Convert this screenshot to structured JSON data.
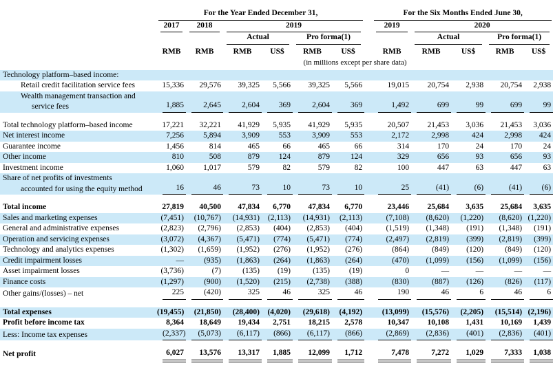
{
  "table": {
    "header": {
      "year_group_label": "For the Year Ended December 31,",
      "six_month_group_label": "For the Six Months Ended June 30,",
      "years": [
        "2017",
        "2018",
        "2019",
        "2019",
        "2020"
      ],
      "actual_label": "Actual",
      "pro_forma_label": "Pro forma(1)",
      "currencies": [
        "RMB",
        "RMB",
        "RMB",
        "US$",
        "RMB",
        "US$",
        "RMB",
        "RMB",
        "US$",
        "RMB",
        "US$"
      ],
      "units_note": "(in millions except per share data)"
    },
    "rows": [
      {
        "shaded": true,
        "bold": false,
        "rule": "none",
        "lines": [
          {
            "text": "Technology platform–based income:",
            "indent": 0
          }
        ],
        "values": [
          "",
          "",
          "",
          "",
          "",
          "",
          "",
          "",
          "",
          "",
          ""
        ]
      },
      {
        "shaded": false,
        "bold": false,
        "rule": "none",
        "lines": [
          {
            "text": "Retail credit facilitation service fees",
            "indent": 1
          }
        ],
        "values": [
          "15,336",
          "29,576",
          "39,325",
          "5,566",
          "39,325",
          "5,566",
          "19,015",
          "20,754",
          "2,938",
          "20,754",
          "2,938"
        ]
      },
      {
        "shaded": true,
        "bold": false,
        "rule": "single",
        "lines": [
          {
            "text": "Wealth management transaction and",
            "indent": 1
          },
          {
            "text": "service fees",
            "indent": 2
          }
        ],
        "values": [
          "1,885",
          "2,645",
          "2,604",
          "369",
          "2,604",
          "369",
          "1,492",
          "699",
          "99",
          "699",
          "99"
        ]
      },
      {
        "spacer": true
      },
      {
        "shaded": false,
        "bold": false,
        "rule": "none",
        "lines": [
          {
            "text": "Total technology platform–based income",
            "indent": 0
          }
        ],
        "values": [
          "17,221",
          "32,221",
          "41,929",
          "5,935",
          "41,929",
          "5,935",
          "20,507",
          "21,453",
          "3,036",
          "21,453",
          "3,036"
        ]
      },
      {
        "shaded": true,
        "bold": false,
        "rule": "none",
        "lines": [
          {
            "text": "Net interest income",
            "indent": 0
          }
        ],
        "values": [
          "7,256",
          "5,894",
          "3,909",
          "553",
          "3,909",
          "553",
          "2,172",
          "2,998",
          "424",
          "2,998",
          "424"
        ]
      },
      {
        "shaded": false,
        "bold": false,
        "rule": "none",
        "lines": [
          {
            "text": "Guarantee income",
            "indent": 0
          }
        ],
        "values": [
          "1,456",
          "814",
          "465",
          "66",
          "465",
          "66",
          "314",
          "170",
          "24",
          "170",
          "24"
        ]
      },
      {
        "shaded": true,
        "bold": false,
        "rule": "none",
        "lines": [
          {
            "text": "Other income",
            "indent": 0
          }
        ],
        "values": [
          "810",
          "508",
          "879",
          "124",
          "879",
          "124",
          "329",
          "656",
          "93",
          "656",
          "93"
        ]
      },
      {
        "shaded": false,
        "bold": false,
        "rule": "none",
        "lines": [
          {
            "text": "Investment income",
            "indent": 0
          }
        ],
        "values": [
          "1,060",
          "1,017",
          "579",
          "82",
          "579",
          "82",
          "100",
          "447",
          "63",
          "447",
          "63"
        ]
      },
      {
        "shaded": true,
        "bold": false,
        "rule": "single",
        "lines": [
          {
            "text": "Share of net profits of investments",
            "indent": 0
          },
          {
            "text": "accounted for using the equity method",
            "indent": 1
          }
        ],
        "values": [
          "16",
          "46",
          "73",
          "10",
          "73",
          "10",
          "25",
          "(41)",
          "(6)",
          "(41)",
          "(6)"
        ]
      },
      {
        "spacer": true
      },
      {
        "shaded": false,
        "bold": true,
        "rule": "none",
        "lines": [
          {
            "text": "Total income",
            "indent": 0
          }
        ],
        "values": [
          "27,819",
          "40,500",
          "47,834",
          "6,770",
          "47,834",
          "6,770",
          "23,446",
          "25,684",
          "3,635",
          "25,684",
          "3,635"
        ]
      },
      {
        "shaded": true,
        "bold": false,
        "rule": "none",
        "lines": [
          {
            "text": "Sales and marketing expenses",
            "indent": 0
          }
        ],
        "values": [
          "(7,451)",
          "(10,767)",
          "(14,931)",
          "(2,113)",
          "(14,931)",
          "(2,113)",
          "(7,108)",
          "(8,620)",
          "(1,220)",
          "(8,620)",
          "(1,220)"
        ]
      },
      {
        "shaded": false,
        "bold": false,
        "rule": "none",
        "lines": [
          {
            "text": "General and administrative expenses",
            "indent": 0
          }
        ],
        "values": [
          "(2,823)",
          "(2,796)",
          "(2,853)",
          "(404)",
          "(2,853)",
          "(404)",
          "(1,519)",
          "(1,348)",
          "(191)",
          "(1,348)",
          "(191)"
        ]
      },
      {
        "shaded": true,
        "bold": false,
        "rule": "none",
        "lines": [
          {
            "text": "Operation and servicing expenses",
            "indent": 0
          }
        ],
        "values": [
          "(3,072)",
          "(4,367)",
          "(5,471)",
          "(774)",
          "(5,471)",
          "(774)",
          "(2,497)",
          "(2,819)",
          "(399)",
          "(2,819)",
          "(399)"
        ]
      },
      {
        "shaded": false,
        "bold": false,
        "rule": "none",
        "lines": [
          {
            "text": "Technology and analytics expenses",
            "indent": 0
          }
        ],
        "values": [
          "(1,302)",
          "(1,659)",
          "(1,952)",
          "(276)",
          "(1,952)",
          "(276)",
          "(864)",
          "(849)",
          "(120)",
          "(849)",
          "(120)"
        ]
      },
      {
        "shaded": true,
        "bold": false,
        "rule": "none",
        "lines": [
          {
            "text": "Credit impairment losses",
            "indent": 0
          }
        ],
        "values": [
          "—",
          "(935)",
          "(1,863)",
          "(264)",
          "(1,863)",
          "(264)",
          "(470)",
          "(1,099)",
          "(156)",
          "(1,099)",
          "(156)"
        ]
      },
      {
        "shaded": false,
        "bold": false,
        "rule": "none",
        "lines": [
          {
            "text": "Asset impairment losses",
            "indent": 0
          }
        ],
        "values": [
          "(3,736)",
          "(7)",
          "(135)",
          "(19)",
          "(135)",
          "(19)",
          "0",
          "—",
          "—",
          "—",
          "—"
        ]
      },
      {
        "shaded": true,
        "bold": false,
        "rule": "none",
        "lines": [
          {
            "text": "Finance costs",
            "indent": 0
          }
        ],
        "values": [
          "(1,297)",
          "(900)",
          "(1,520)",
          "(215)",
          "(2,738)",
          "(388)",
          "(830)",
          "(887)",
          "(126)",
          "(826)",
          "(117)"
        ]
      },
      {
        "shaded": false,
        "bold": false,
        "rule": "single",
        "lines": [
          {
            "text": "Other gains/(losses) – net",
            "indent": 0
          }
        ],
        "values": [
          "225",
          "(420)",
          "325",
          "46",
          "325",
          "46",
          "190",
          "46",
          "6",
          "46",
          "6"
        ]
      },
      {
        "spacer": true
      },
      {
        "shaded": true,
        "bold": true,
        "rule": "none",
        "lines": [
          {
            "text": "Total expenses",
            "indent": 0
          }
        ],
        "values": [
          "(19,455)",
          "(21,850)",
          "(28,400)",
          "(4,020)",
          "(29,618)",
          "(4,192)",
          "(13,099)",
          "(15,576)",
          "(2,205)",
          "(15,514)",
          "(2,196)"
        ]
      },
      {
        "shaded": false,
        "bold": true,
        "rule": "none",
        "lines": [
          {
            "text": "Profit before income tax",
            "indent": 0
          }
        ],
        "values": [
          "8,364",
          "18,649",
          "19,434",
          "2,751",
          "18,215",
          "2,578",
          "10,347",
          "10,108",
          "1,431",
          "10,169",
          "1,439"
        ]
      },
      {
        "shaded": true,
        "bold": false,
        "rule": "single",
        "lines": [
          {
            "text": "Less: Income tax expenses",
            "indent": 0
          }
        ],
        "values": [
          "(2,337)",
          "(5,073)",
          "(6,117)",
          "(866)",
          "(6,117)",
          "(866)",
          "(2,869)",
          "(2,836)",
          "(401)",
          "(2,836)",
          "(401)"
        ]
      },
      {
        "spacer": true
      },
      {
        "shaded": false,
        "bold": true,
        "rule": "double",
        "lines": [
          {
            "text": "Net profit",
            "indent": 0
          }
        ],
        "values": [
          "6,027",
          "13,576",
          "13,317",
          "1,885",
          "12,099",
          "1,712",
          "7,478",
          "7,272",
          "1,029",
          "7,333",
          "1,038"
        ]
      }
    ]
  }
}
